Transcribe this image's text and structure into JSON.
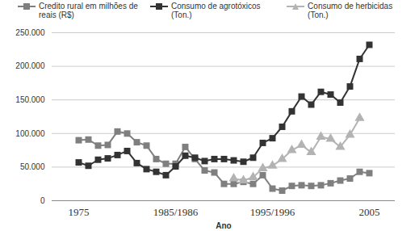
{
  "chart_data": {
    "type": "line",
    "x_label": "Ano",
    "categories": [
      "1975",
      null,
      null,
      null,
      null,
      null,
      null,
      null,
      null,
      null,
      "1985/1986",
      null,
      null,
      null,
      null,
      null,
      null,
      null,
      null,
      null,
      "1995/1996",
      null,
      null,
      null,
      null,
      null,
      null,
      null,
      null,
      null,
      "2005"
    ],
    "series": [
      {
        "name": "Credito rural em milhões de reais (R$)",
        "color": "#7f7f7f",
        "marker": "square",
        "line_style": "solid",
        "values": [
          90000,
          91000,
          82000,
          83000,
          103000,
          100000,
          87000,
          82000,
          62000,
          55000,
          55000,
          80000,
          62000,
          45000,
          42000,
          25000,
          25000,
          28000,
          25000,
          38000,
          18000,
          15000,
          22000,
          23000,
          22000,
          23000,
          26000,
          30000,
          33000,
          43000,
          41000
        ]
      },
      {
        "name": "Consumo de agrotóxicos (Ton.)",
        "color": "#333333",
        "marker": "square",
        "line_style": "solid",
        "values": [
          57000,
          52000,
          61000,
          63000,
          68000,
          74000,
          56000,
          47000,
          43000,
          38000,
          51000,
          67000,
          64000,
          59000,
          62000,
          62000,
          60000,
          58000,
          64000,
          86000,
          93000,
          110000,
          133000,
          155000,
          143000,
          162000,
          158000,
          146000,
          170000,
          211000,
          232000
        ]
      },
      {
        "name": "Consumo de herbicidas (Ton.)",
        "color": "#b3b3b3",
        "marker": "triangle",
        "line_style": "solid",
        "values": [
          null,
          null,
          null,
          null,
          null,
          null,
          null,
          null,
          null,
          null,
          null,
          null,
          null,
          null,
          null,
          null,
          33000,
          30000,
          35000,
          48000,
          52000,
          62000,
          75000,
          83000,
          72000,
          95000,
          92000,
          80000,
          98000,
          123000,
          null
        ]
      }
    ],
    "ylim": [
      0,
      250000
    ],
    "yticks": [
      0,
      {
        "value": 50000,
        "label": "50.000"
      },
      {
        "value": 100000,
        "label": "100.000"
      },
      {
        "value": 150000,
        "label": "150.000"
      },
      {
        "value": 200000,
        "label": "200.000"
      },
      {
        "value": 250000,
        "label": "250.000"
      }
    ],
    "grid": true,
    "legend": "top"
  }
}
